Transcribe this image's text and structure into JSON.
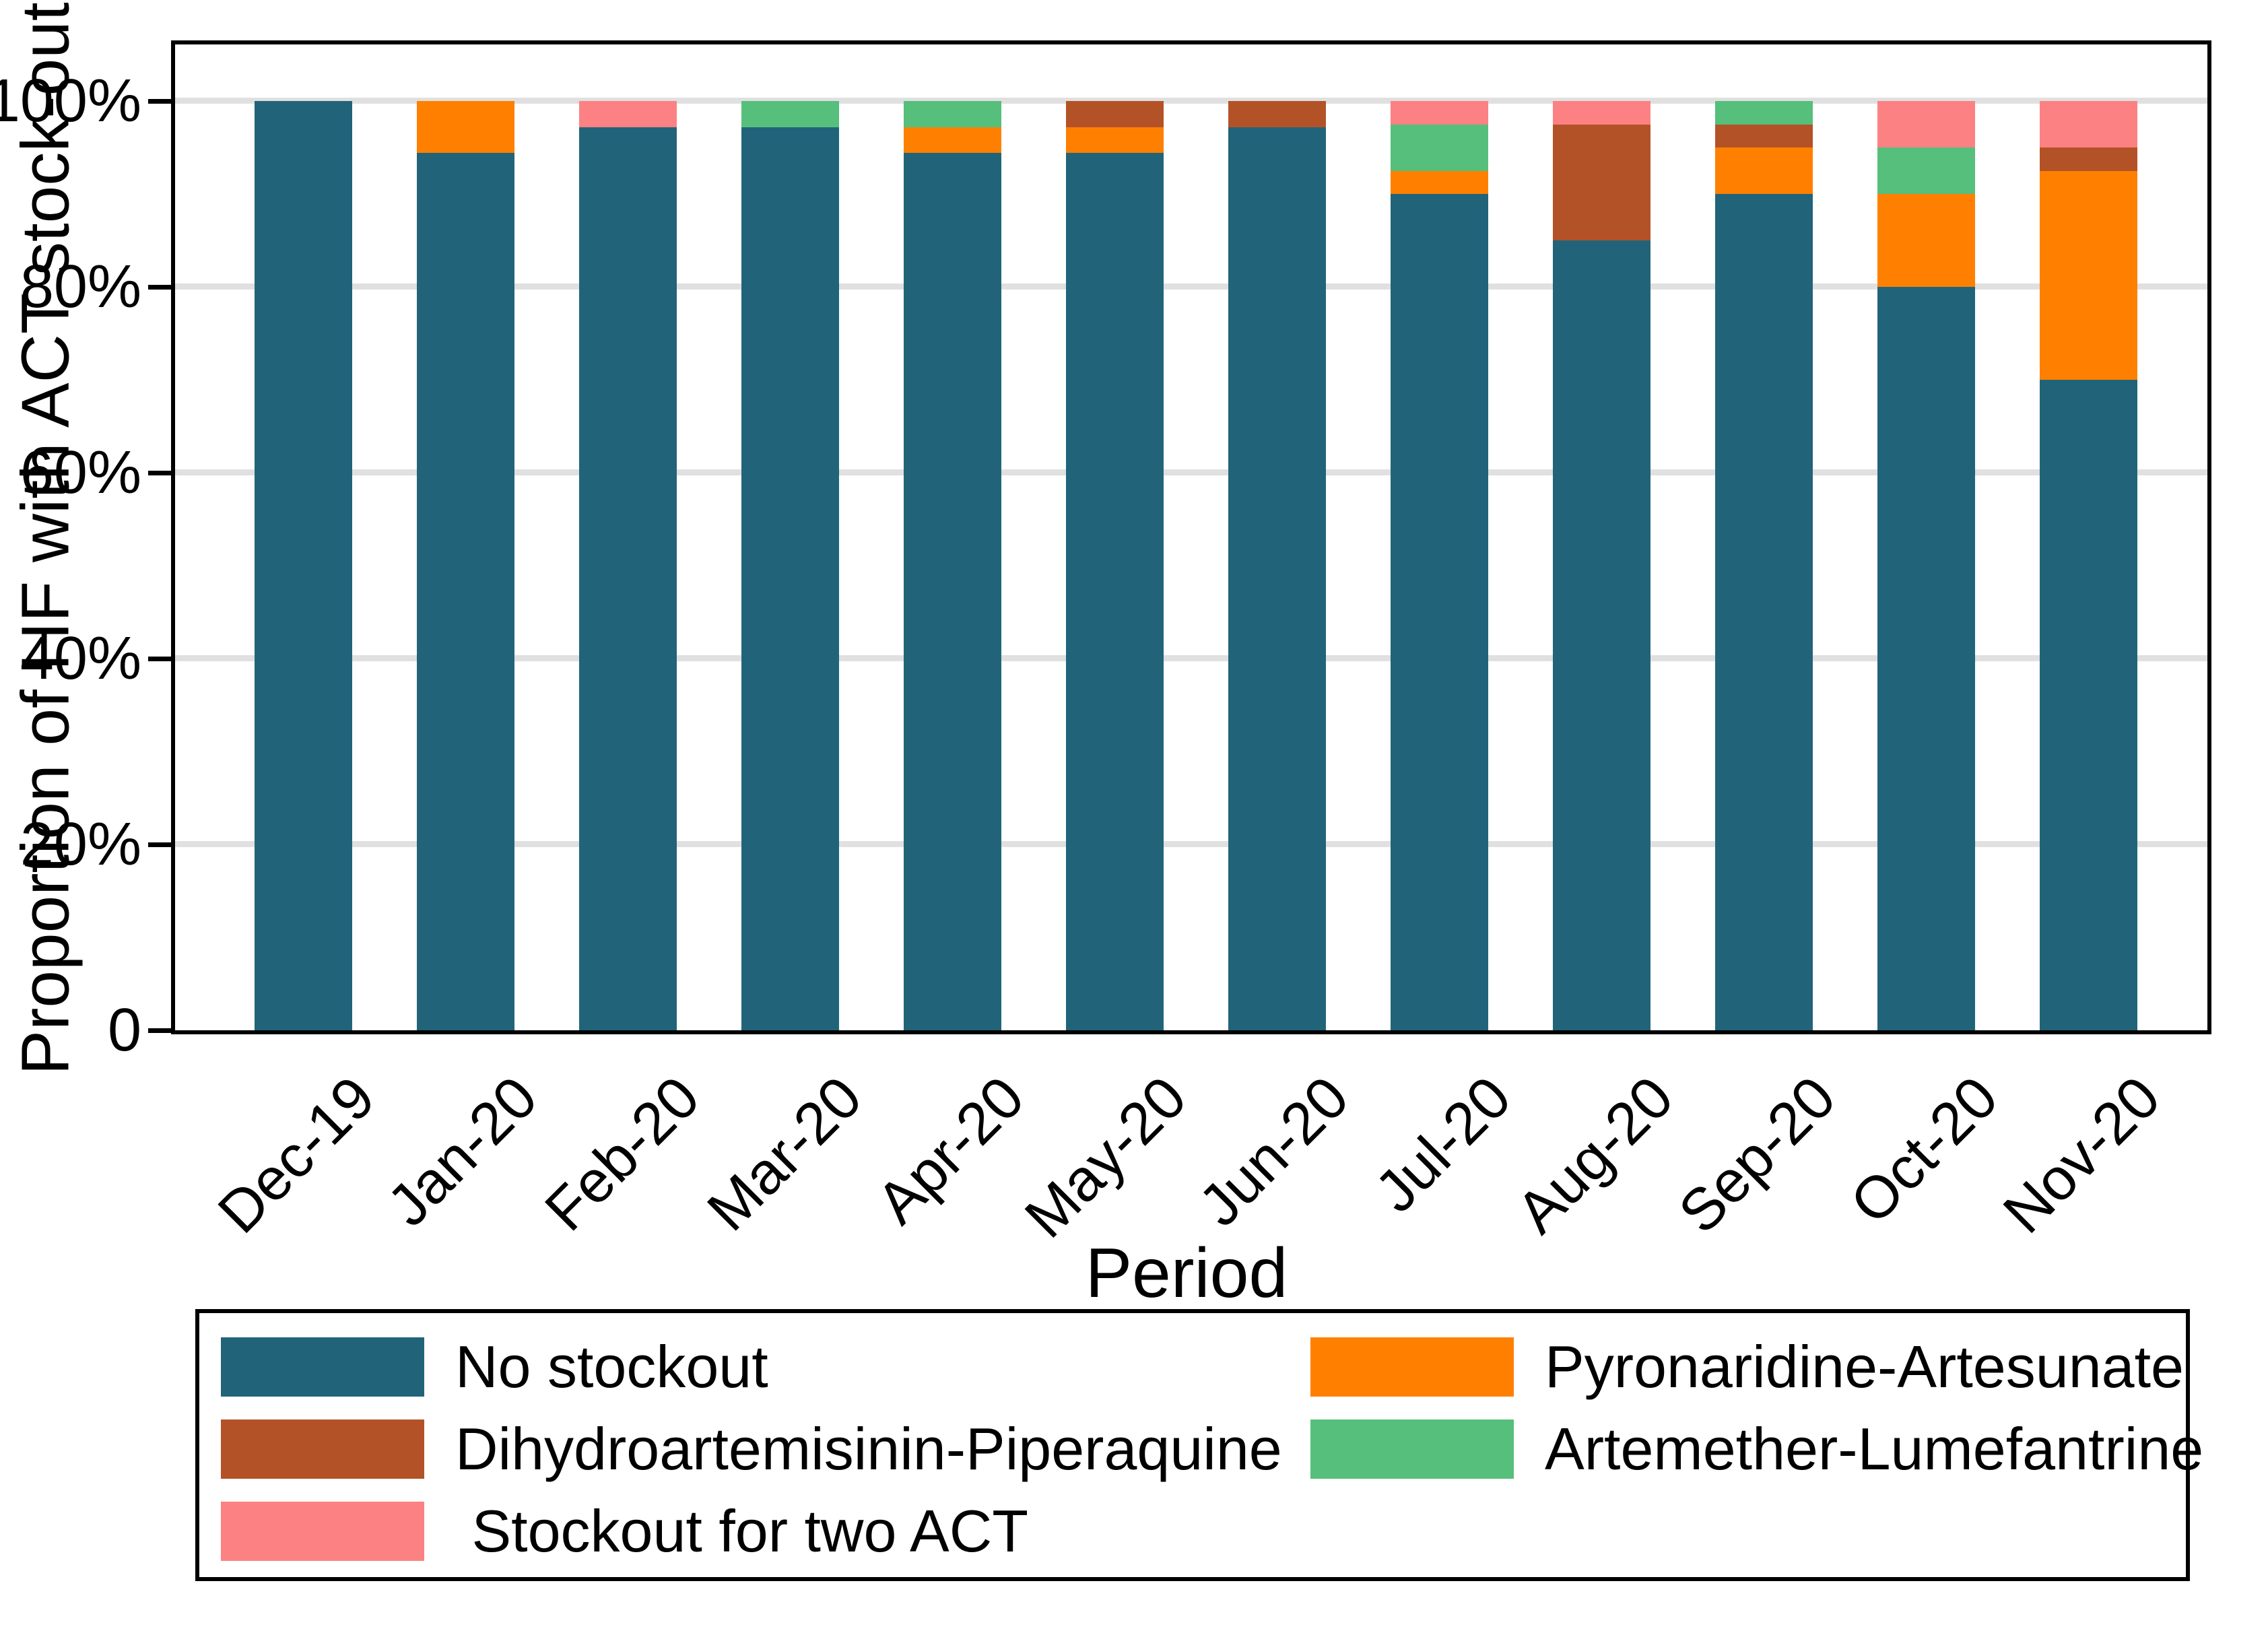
{
  "figure": {
    "y_axis": {
      "title": "Proportion of HF with ACT stock-out",
      "ticks": [
        {
          "label": "0",
          "value": 0
        },
        {
          "label": "20%",
          "value": 20
        },
        {
          "label": "40%",
          "value": 40
        },
        {
          "label": "60%",
          "value": 60
        },
        {
          "label": "80%",
          "value": 80
        },
        {
          "label": "100%",
          "value": 100
        }
      ]
    },
    "x_axis": {
      "title": "Period"
    }
  },
  "chart_data": {
    "type": "bar",
    "stacked": true,
    "title": "",
    "xlabel": "Period",
    "ylabel": "Proportion of HF with ACT stock-out",
    "ylim": [
      0,
      100
    ],
    "grid": true,
    "legend_position": "bottom",
    "categories": [
      "Dec-19",
      "Jan-20",
      "Feb-20",
      "Mar-20",
      "Apr-20",
      "May-20",
      "Jun-20",
      "Jul-20",
      "Aug-20",
      "Sep-20",
      "Oct-20",
      "Nov-20"
    ],
    "series": [
      {
        "name": "No stockout",
        "color": "#21647A",
        "values": [
          100,
          94.4,
          97.2,
          97.2,
          94.4,
          94.4,
          97.2,
          90,
          85,
          90,
          80,
          70
        ]
      },
      {
        "name": "Pyronaridine-Artesunate",
        "color": "#FF8000",
        "values": [
          0,
          5.6,
          0,
          0,
          2.8,
          2.8,
          0,
          2.5,
          0,
          5,
          10,
          22.5
        ]
      },
      {
        "name": "Dihydroartemisinin-Piperaquine",
        "color": "#B45227",
        "values": [
          0,
          0,
          0,
          0,
          0,
          2.8,
          2.8,
          0,
          12.5,
          2.5,
          0,
          2.5
        ]
      },
      {
        "name": "Artemether-Lumefantrine",
        "color": "#55BF7B",
        "values": [
          0,
          0,
          0,
          2.8,
          2.8,
          0,
          0,
          5,
          0,
          2.5,
          5,
          0
        ]
      },
      {
        "name": "Stockout for two ACT",
        "color": "#FC8183",
        "values": [
          0,
          0,
          2.8,
          0,
          0,
          0,
          0,
          2.5,
          2.5,
          0,
          5,
          5
        ]
      }
    ],
    "legend_items": [
      {
        "series": 0,
        "col": 0,
        "row": 0,
        "label": "No stockout"
      },
      {
        "series": 2,
        "col": 0,
        "row": 1,
        "label": "Dihydroartemisinin-Piperaquine"
      },
      {
        "series": 4,
        "col": 0,
        "row": 2,
        "label": " Stockout for two ACT"
      },
      {
        "series": 1,
        "col": 1,
        "row": 0,
        "label": "Pyronaridine-Artesunate"
      },
      {
        "series": 3,
        "col": 1,
        "row": 1,
        "label": "Artemether-Lumefantrine"
      }
    ]
  }
}
